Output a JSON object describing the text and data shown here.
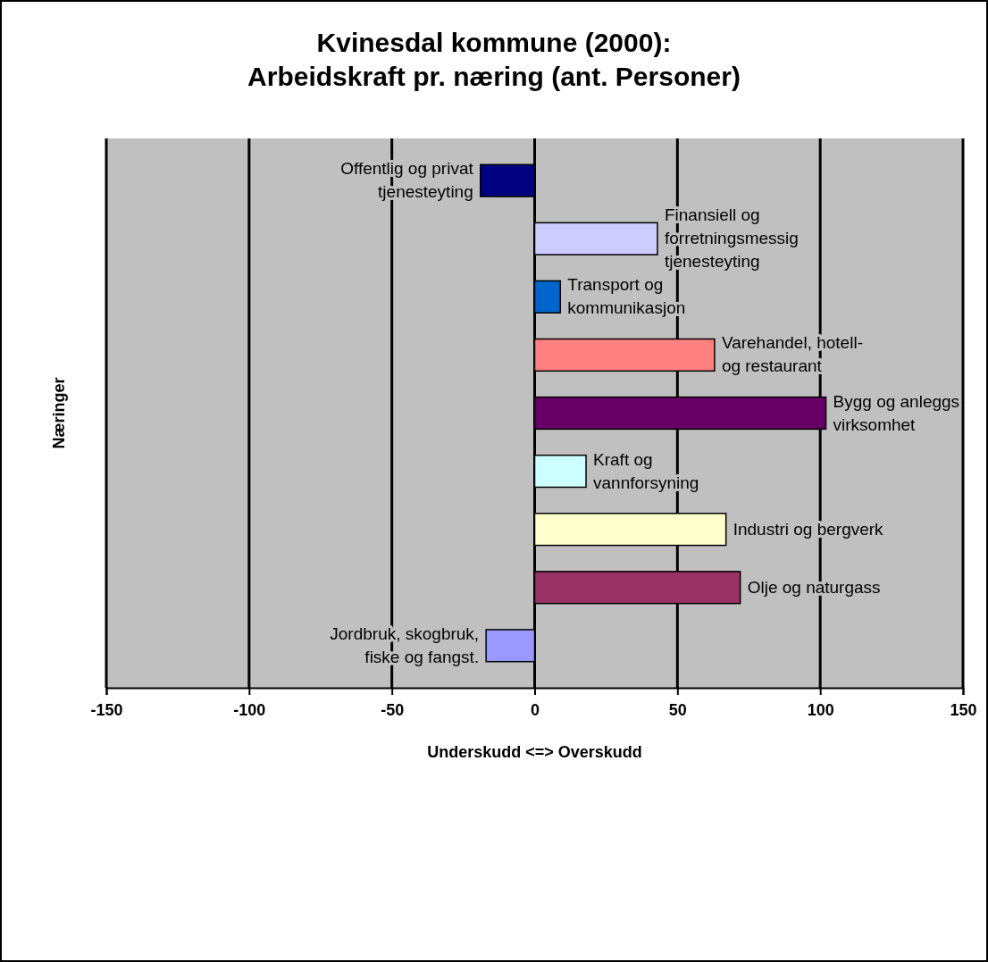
{
  "chart_data": {
    "type": "bar",
    "orientation": "horizontal",
    "title": "Kvinesdal kommune (2000):\nArbeidskraft pr. næring (ant. Personer)",
    "xlabel": "Underskudd <=> Overskudd",
    "ylabel": "Næringer",
    "categories": [
      "Offentlig og privat tjenesteyting",
      "Finansiell og forretningsmessig tjenesteyting",
      "Transport og kommunikasjon",
      "Varehandel, hotell- og restaurant",
      "Bygg og anleggs virksomhet",
      "Kraft og vannforsyning",
      "Industri og bergverk",
      "Olje og naturgass",
      "Jordbruk, skogbruk, fiske og fangst."
    ],
    "values": [
      -19,
      43,
      9,
      63,
      102,
      18,
      67,
      72,
      -17
    ],
    "colors": [
      "#000080",
      "#ccccff",
      "#0066cc",
      "#ff8080",
      "#660066",
      "#ccffff",
      "#ffffcc",
      "#993366",
      "#9999ff"
    ],
    "xlim": [
      -150,
      150
    ],
    "xticks": [
      -150,
      -100,
      -50,
      0,
      50,
      100,
      150
    ],
    "grid": "x",
    "tick_labels": "x"
  }
}
